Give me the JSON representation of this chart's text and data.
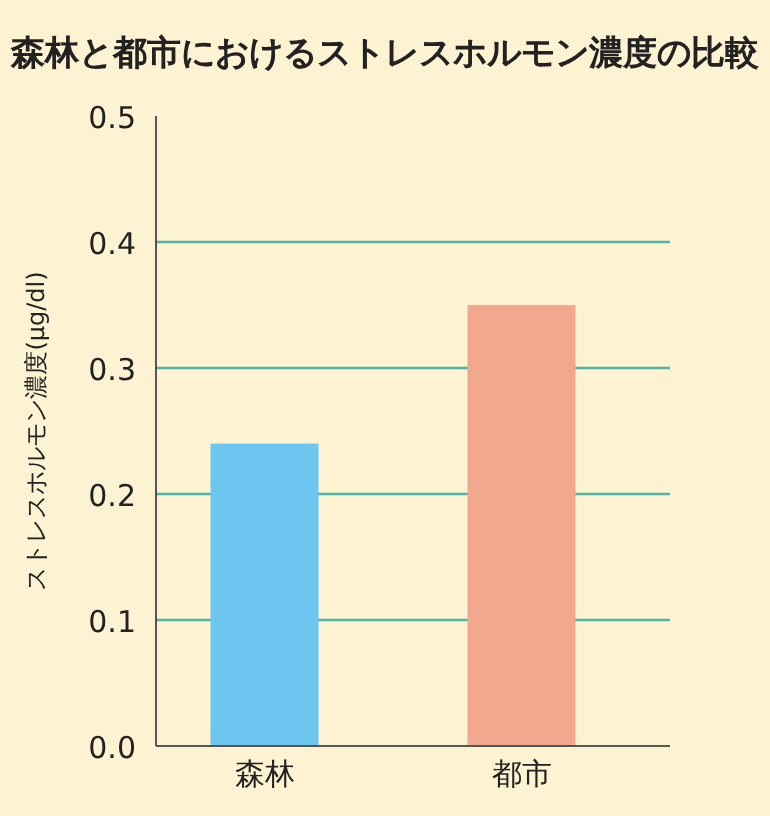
{
  "chart_data": {
    "type": "bar",
    "title": "森林と都市におけるストレスホルモン濃度の比較",
    "ylabel": "ストレスホルモン濃度(μg/dl)",
    "categories": [
      "森林",
      "都市"
    ],
    "values": [
      0.24,
      0.35
    ],
    "colors": [
      "#6cc6f0",
      "#f2a88e"
    ],
    "ylim": [
      0,
      0.5
    ],
    "yticks": [
      {
        "value": 0,
        "label": "0.0"
      },
      0.1,
      0.2,
      0.3,
      0.4,
      0.5
    ],
    "grid": "y"
  }
}
